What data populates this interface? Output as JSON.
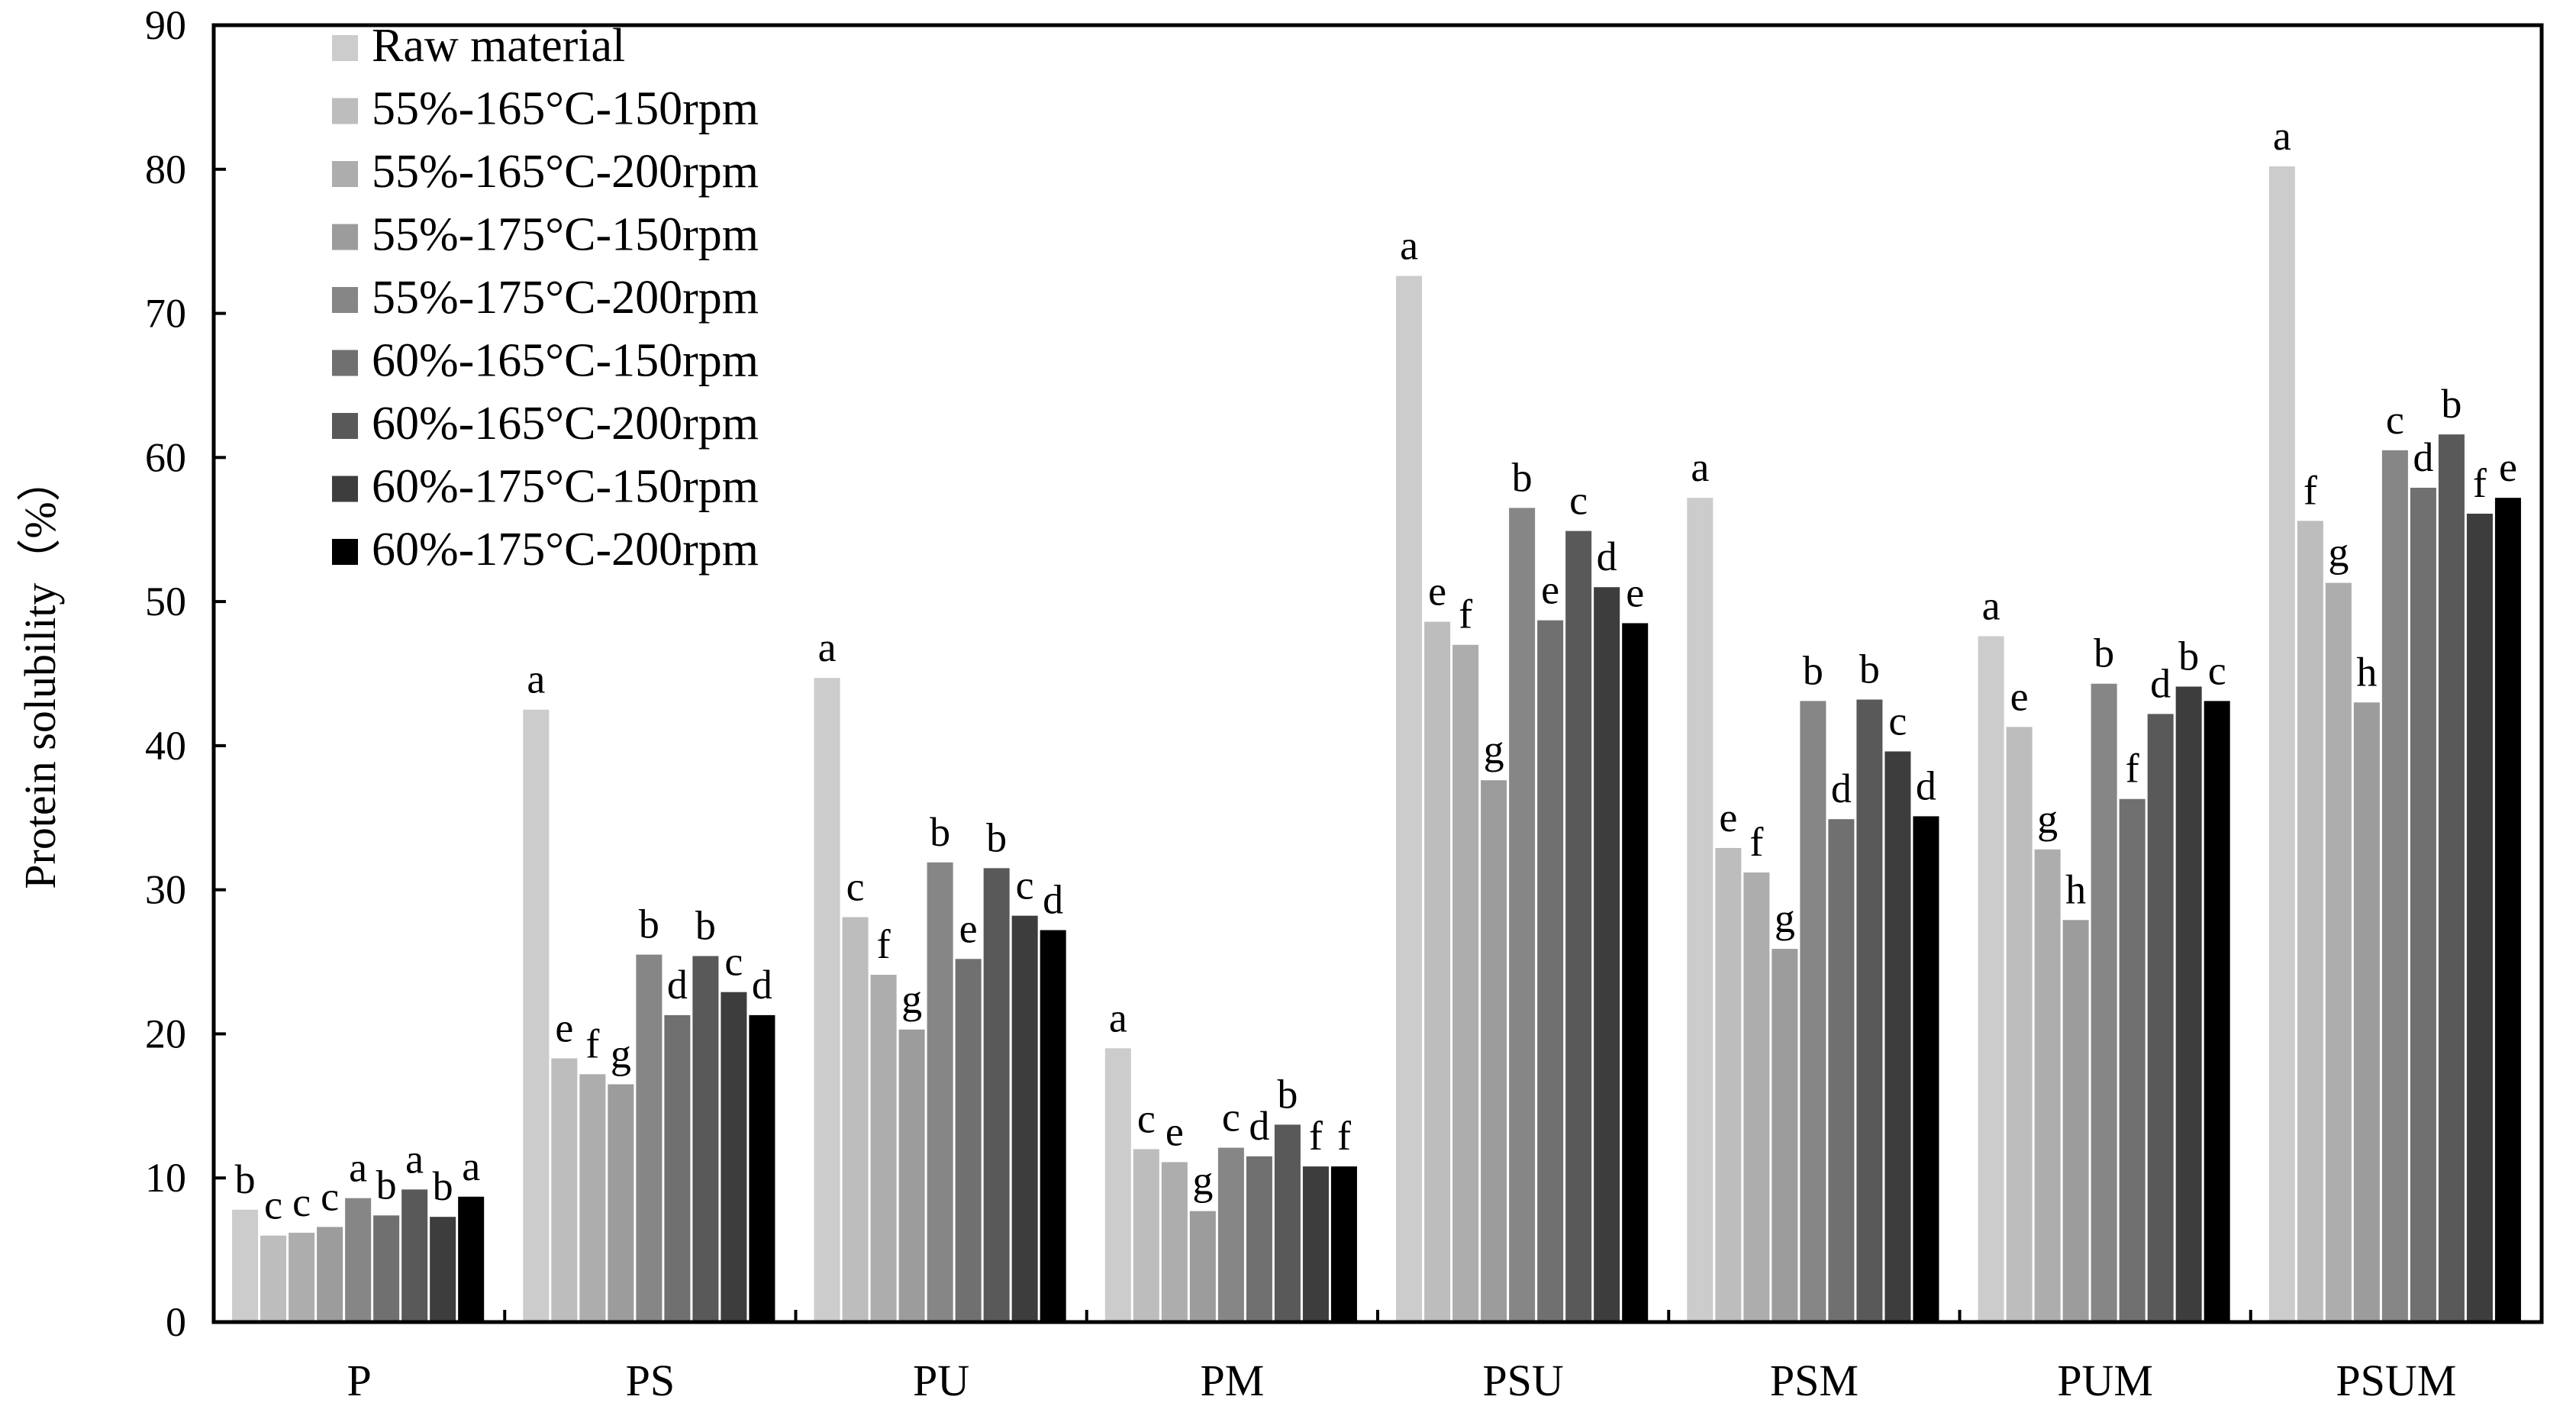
{
  "chart_data": {
    "type": "bar",
    "ylabel": "Protein solubility（%）",
    "xlabel": "",
    "ylim": [
      0,
      90
    ],
    "yticks": [
      0,
      10,
      20,
      30,
      40,
      50,
      60,
      70,
      80,
      90
    ],
    "grid": false,
    "legend_position": "top-left",
    "categories": [
      "P",
      "PS",
      "PU",
      "PM",
      "PSU",
      "PSM",
      "PUM",
      "PSUM"
    ],
    "series": [
      {
        "name": "Raw material",
        "color": "#cccccc",
        "values": [
          7.8,
          42.5,
          44.7,
          19.0,
          72.6,
          57.2,
          47.6,
          80.2
        ],
        "labels": [
          "b",
          "a",
          "a",
          "a",
          "a",
          "a",
          "a",
          "a"
        ]
      },
      {
        "name": "55%-165°C-150rpm",
        "color": "#bdbdbd",
        "values": [
          6.0,
          18.3,
          28.1,
          12.0,
          48.6,
          32.9,
          41.3,
          55.6
        ],
        "labels": [
          "c",
          "e",
          "c",
          "c",
          "e",
          "e",
          "e",
          "f"
        ]
      },
      {
        "name": "55%-165°C-200rpm",
        "color": "#adadad",
        "values": [
          6.2,
          17.2,
          24.1,
          11.1,
          47.0,
          31.2,
          32.8,
          51.3
        ],
        "labels": [
          "c",
          "f",
          "f",
          "e",
          "f",
          "f",
          "g",
          "g"
        ]
      },
      {
        "name": "55%-175°C-150rpm",
        "color": "#9c9c9c",
        "values": [
          6.6,
          16.5,
          20.3,
          7.7,
          37.6,
          25.9,
          27.9,
          43.0
        ],
        "labels": [
          "c",
          "g",
          "g",
          "g",
          "g",
          "g",
          "h",
          "h"
        ]
      },
      {
        "name": "55%-175°C-200rpm",
        "color": "#868686",
        "values": [
          8.6,
          25.5,
          31.9,
          12.1,
          56.5,
          43.1,
          44.3,
          60.5
        ],
        "labels": [
          "a",
          "b",
          "b",
          "c",
          "b",
          "b",
          "b",
          "c"
        ]
      },
      {
        "name": "60%-165°C-150rpm",
        "color": "#707070",
        "values": [
          7.4,
          21.3,
          25.2,
          11.5,
          48.7,
          34.9,
          36.3,
          57.9
        ],
        "labels": [
          "b",
          "d",
          "e",
          "d",
          "e",
          "d",
          "f",
          "d"
        ]
      },
      {
        "name": "60%-165°C-200rpm",
        "color": "#595959",
        "values": [
          9.2,
          25.4,
          31.5,
          13.7,
          54.9,
          43.2,
          42.2,
          61.6
        ],
        "labels": [
          "a",
          "b",
          "b",
          "b",
          "c",
          "b",
          "d",
          "b"
        ]
      },
      {
        "name": "60%-175°C-150rpm",
        "color": "#3d3d3d",
        "values": [
          7.3,
          22.9,
          28.2,
          10.8,
          51.0,
          39.6,
          44.1,
          56.1
        ],
        "labels": [
          "b",
          "c",
          "c",
          "f",
          "d",
          "c",
          "b",
          "f"
        ]
      },
      {
        "name": "60%-175°C-200rpm",
        "color": "#000000",
        "values": [
          8.7,
          21.3,
          27.2,
          10.8,
          48.5,
          35.1,
          43.1,
          57.2
        ],
        "labels": [
          "a",
          "d",
          "d",
          "f",
          "e",
          "d",
          "c",
          "e"
        ]
      }
    ]
  }
}
